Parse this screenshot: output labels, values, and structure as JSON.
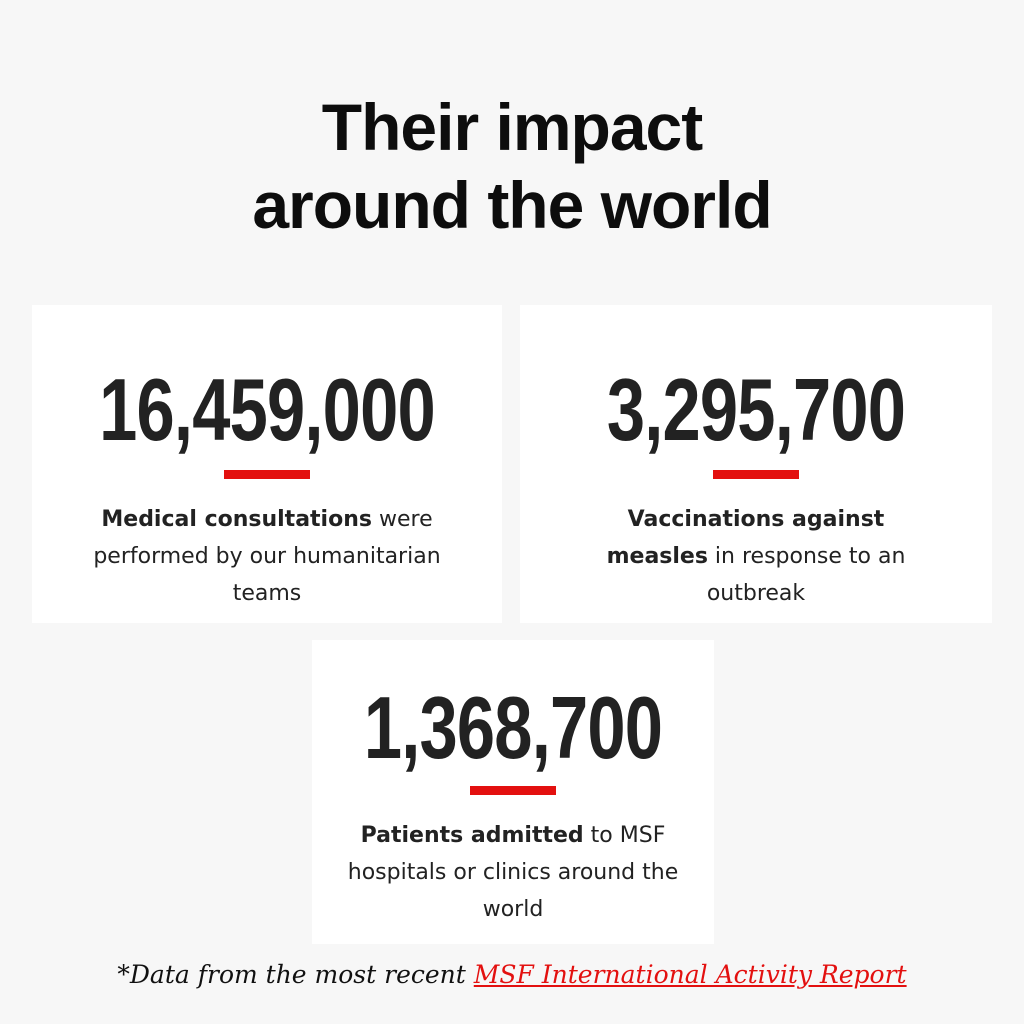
{
  "title": {
    "line1": "Their impact",
    "line2": "around the world"
  },
  "accent_color": "#e3100f",
  "stats": [
    {
      "number": "16,459,000",
      "bold": "Medical consultations",
      "rest": " were performed by our humanitarian teams"
    },
    {
      "number": "3,295,700",
      "bold": "Vaccinations against measles",
      "rest": " in response to an outbreak"
    },
    {
      "number": "1,368,700",
      "bold": "Patients admitted",
      "rest": " to MSF hospitals or clinics around the world"
    }
  ],
  "footer": {
    "prefix": "*Data from the most recent ",
    "link": "MSF International Activity Report"
  }
}
